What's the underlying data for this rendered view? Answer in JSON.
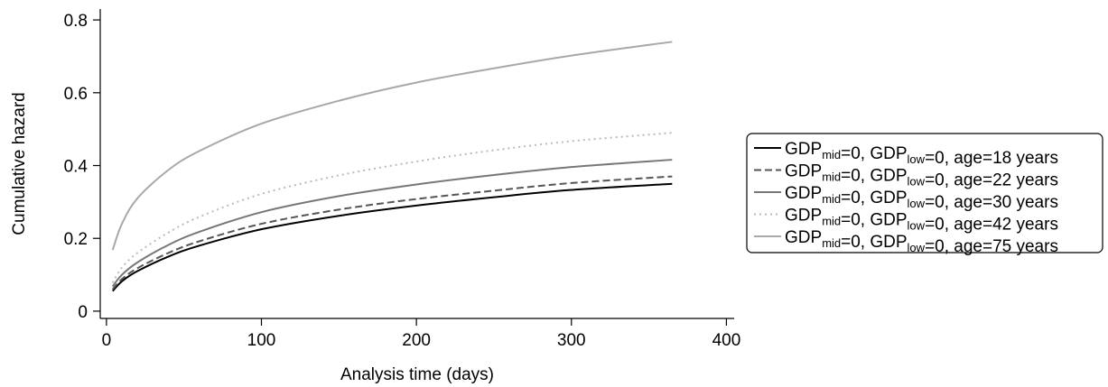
{
  "chart_data": {
    "type": "line",
    "xlabel": "Analysis time (days)",
    "ylabel": "Cumulative hazard",
    "xlim": [
      -4,
      405
    ],
    "ylim": [
      -0.02,
      0.83
    ],
    "xticks": [
      0,
      100,
      200,
      300,
      400
    ],
    "yticks": [
      0,
      0.2,
      0.4,
      0.6,
      0.8
    ],
    "xtick_labels": [
      "0",
      "100",
      "200",
      "300",
      "400"
    ],
    "ytick_labels": [
      "0",
      "0.2",
      "0.4",
      "0.6",
      "0.8"
    ],
    "grid": false,
    "legend_position": "right",
    "series": [
      {
        "legend": {
          "pre": "GDP",
          "sub1": "mid",
          "mid": "=0, GDP",
          "sub2": "low",
          "post": "=0, age=18 years"
        },
        "color": "#000000",
        "dash": "solid",
        "x": [
          4,
          10,
          20,
          40,
          60,
          100,
          150,
          200,
          250,
          300,
          365
        ],
        "y": [
          0.055,
          0.082,
          0.11,
          0.15,
          0.18,
          0.225,
          0.262,
          0.29,
          0.313,
          0.333,
          0.35
        ]
      },
      {
        "legend": {
          "pre": "GDP",
          "sub1": "mid",
          "mid": "=0, GDP",
          "sub2": "low",
          "post": "=0, age=22 years"
        },
        "color": "#555555",
        "dash": "dashed",
        "x": [
          4,
          10,
          20,
          40,
          60,
          100,
          150,
          200,
          250,
          300,
          365
        ],
        "y": [
          0.06,
          0.088,
          0.118,
          0.16,
          0.192,
          0.24,
          0.279,
          0.308,
          0.331,
          0.352,
          0.37
        ]
      },
      {
        "legend": {
          "pre": "GDP",
          "sub1": "mid",
          "mid": "=0, GDP",
          "sub2": "low",
          "post": "=0, age=30 years"
        },
        "color": "#777777",
        "dash": "solid",
        "x": [
          4,
          10,
          20,
          40,
          60,
          100,
          150,
          200,
          250,
          300,
          365
        ],
        "y": [
          0.068,
          0.1,
          0.134,
          0.182,
          0.218,
          0.272,
          0.316,
          0.348,
          0.374,
          0.396,
          0.416
        ]
      },
      {
        "legend": {
          "pre": "GDP",
          "sub1": "mid",
          "mid": "=0, GDP",
          "sub2": "low",
          "post": "=0, age=42 years"
        },
        "color": "#bbbbbb",
        "dash": "dotted",
        "x": [
          4,
          10,
          20,
          40,
          60,
          100,
          150,
          200,
          250,
          300,
          365
        ],
        "y": [
          0.078,
          0.12,
          0.16,
          0.216,
          0.259,
          0.322,
          0.373,
          0.411,
          0.442,
          0.467,
          0.49
        ]
      },
      {
        "legend": {
          "pre": "GDP",
          "sub1": "mid",
          "mid": "=0, GDP",
          "sub2": "low",
          "post": "=0, age=75 years"
        },
        "color": "#a8a8a8",
        "dash": "solid",
        "x": [
          4,
          10,
          20,
          40,
          60,
          100,
          150,
          200,
          250,
          300,
          365
        ],
        "y": [
          0.168,
          0.24,
          0.31,
          0.388,
          0.44,
          0.515,
          0.578,
          0.628,
          0.667,
          0.702,
          0.74
        ]
      }
    ]
  }
}
